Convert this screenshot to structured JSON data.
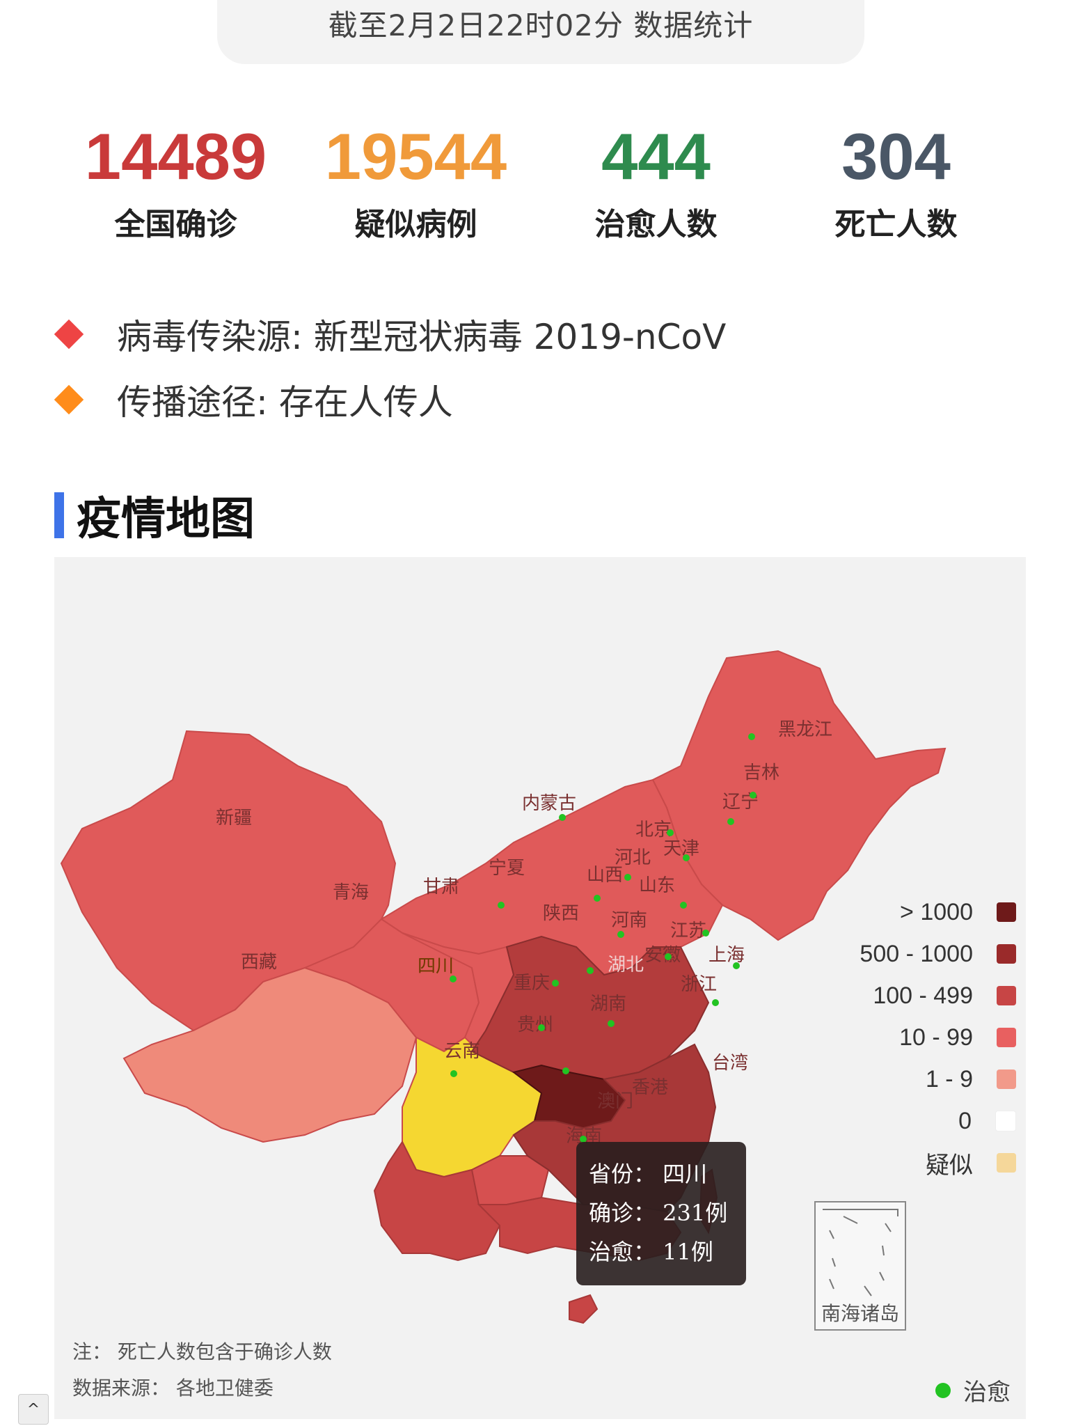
{
  "header": {
    "timestamp": "截至2月2日22时02分 数据统计"
  },
  "stats": [
    {
      "value": "14489",
      "label": "全国确诊",
      "color": "#c93a3a"
    },
    {
      "value": "19544",
      "label": "疑似病例",
      "color": "#f09a3a"
    },
    {
      "value": "444",
      "label": "治愈人数",
      "color": "#2e8b4e"
    },
    {
      "value": "304",
      "label": "死亡人数",
      "color": "#4a5766"
    }
  ],
  "info": [
    {
      "text": "病毒传染源: 新型冠状病毒 2019-nCoV",
      "color": "#ee4444"
    },
    {
      "text": "传播途径: 存在人传人",
      "color": "#ff8c1a"
    }
  ],
  "section": {
    "title": "疫情地图"
  },
  "map": {
    "legend": [
      {
        "label": "> 1000",
        "color": "#6e1a1a"
      },
      {
        "label": "500 - 1000",
        "color": "#9a2a2a"
      },
      {
        "label": "100 - 499",
        "color": "#c74545"
      },
      {
        "label": "10 - 99",
        "color": "#e86060"
      },
      {
        "label": "1 - 9",
        "color": "#f29a8a"
      },
      {
        "label": "0",
        "color": "#ffffff"
      },
      {
        "label": "疑似",
        "color": "#f5d79a"
      }
    ],
    "province_labels": {
      "xinjiang": "新疆",
      "xizang": "西藏",
      "qinghai": "青海",
      "gansu": "甘肃",
      "neimenggu": "内蒙古",
      "heilongjiang": "黑龙江",
      "jilin": "吉林",
      "liaoning": "辽宁",
      "beijing": "北京",
      "tianjin": "天津",
      "hebei": "河北",
      "shanxi": "山西",
      "shandong": "山东",
      "ningxia": "宁夏",
      "shaanxi": "陕西",
      "henan": "河南",
      "jiangsu": "江苏",
      "shanghai": "上海",
      "anhui": "安徽",
      "hubei": "湖北",
      "sichuan": "四川",
      "chongqing": "重庆",
      "zhejiang": "浙江",
      "hunan": "湖南",
      "guizhou": "贵州",
      "yunnan": "云南",
      "taiwan": "台湾",
      "xianggang": "香港",
      "aomen": "澳门",
      "hainan": "海南"
    },
    "tooltip": {
      "province": "省份： 四川",
      "confirmed": "确诊： 231例",
      "cured": "治愈： 11例"
    },
    "inset_label": "南海诸岛",
    "note": "注：  死亡人数包含于确诊人数",
    "source": "数据来源：  各地卫健委",
    "cured_legend": "治愈",
    "cured_color": "#22c322"
  },
  "scroll_up": "^"
}
